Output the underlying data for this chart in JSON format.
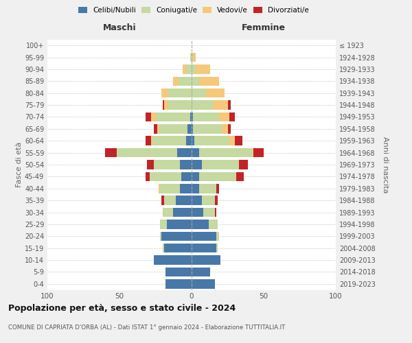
{
  "age_groups": [
    "0-4",
    "5-9",
    "10-14",
    "15-19",
    "20-24",
    "25-29",
    "30-34",
    "35-39",
    "40-44",
    "45-49",
    "50-54",
    "55-59",
    "60-64",
    "65-69",
    "70-74",
    "75-79",
    "80-84",
    "85-89",
    "90-94",
    "95-99",
    "100+"
  ],
  "birth_years": [
    "2019-2023",
    "2014-2018",
    "2009-2013",
    "2004-2008",
    "1999-2003",
    "1994-1998",
    "1989-1993",
    "1984-1988",
    "1979-1983",
    "1974-1978",
    "1969-1973",
    "1964-1968",
    "1959-1963",
    "1954-1958",
    "1949-1953",
    "1944-1948",
    "1939-1943",
    "1934-1938",
    "1929-1933",
    "1924-1928",
    "≤ 1923"
  ],
  "males": {
    "celibi": [
      18,
      18,
      26,
      19,
      21,
      17,
      13,
      11,
      8,
      7,
      8,
      10,
      4,
      3,
      1,
      0,
      0,
      0,
      0,
      0,
      0
    ],
    "coniugati": [
      0,
      0,
      0,
      1,
      1,
      5,
      7,
      8,
      14,
      22,
      18,
      42,
      23,
      20,
      24,
      16,
      16,
      9,
      4,
      1,
      0
    ],
    "vedovi": [
      0,
      0,
      0,
      0,
      0,
      0,
      0,
      0,
      1,
      0,
      0,
      0,
      1,
      1,
      3,
      3,
      5,
      4,
      2,
      0,
      0
    ],
    "divorziati": [
      0,
      0,
      0,
      0,
      0,
      0,
      0,
      2,
      0,
      3,
      5,
      8,
      4,
      2,
      4,
      1,
      0,
      0,
      0,
      0,
      0
    ]
  },
  "females": {
    "nubili": [
      16,
      13,
      20,
      17,
      17,
      12,
      8,
      7,
      5,
      5,
      7,
      5,
      2,
      1,
      1,
      0,
      0,
      0,
      0,
      0,
      0
    ],
    "coniugate": [
      0,
      0,
      0,
      1,
      2,
      6,
      8,
      9,
      12,
      25,
      26,
      37,
      24,
      20,
      18,
      15,
      10,
      5,
      3,
      1,
      0
    ],
    "vedove": [
      0,
      0,
      0,
      0,
      0,
      0,
      0,
      0,
      0,
      1,
      0,
      1,
      4,
      4,
      7,
      10,
      13,
      14,
      10,
      2,
      0
    ],
    "divorziate": [
      0,
      0,
      0,
      0,
      0,
      0,
      1,
      2,
      2,
      5,
      6,
      7,
      5,
      2,
      4,
      2,
      0,
      0,
      0,
      0,
      0
    ]
  },
  "colors": {
    "celibi": "#4878a8",
    "coniugati": "#c5d9a0",
    "vedovi": "#f5c87a",
    "divorziati": "#c0242a"
  },
  "legend_labels": [
    "Celibi/Nubili",
    "Coniugati/e",
    "Vedovi/e",
    "Divorziati/e"
  ],
  "title": "Popolazione per età, sesso e stato civile - 2024",
  "subtitle": "COMUNE DI CAPRIATA D'ORBA (AL) - Dati ISTAT 1° gennaio 2024 - Elaborazione TUTTITALIA.IT",
  "xlabel_left": "Maschi",
  "xlabel_right": "Femmine",
  "ylabel_left": "Fasce di età",
  "ylabel_right": "Anni di nascita",
  "xlim": 100,
  "bg_color": "#f0f0f0",
  "plot_bg": "#ffffff",
  "grid_color": "#cccccc"
}
